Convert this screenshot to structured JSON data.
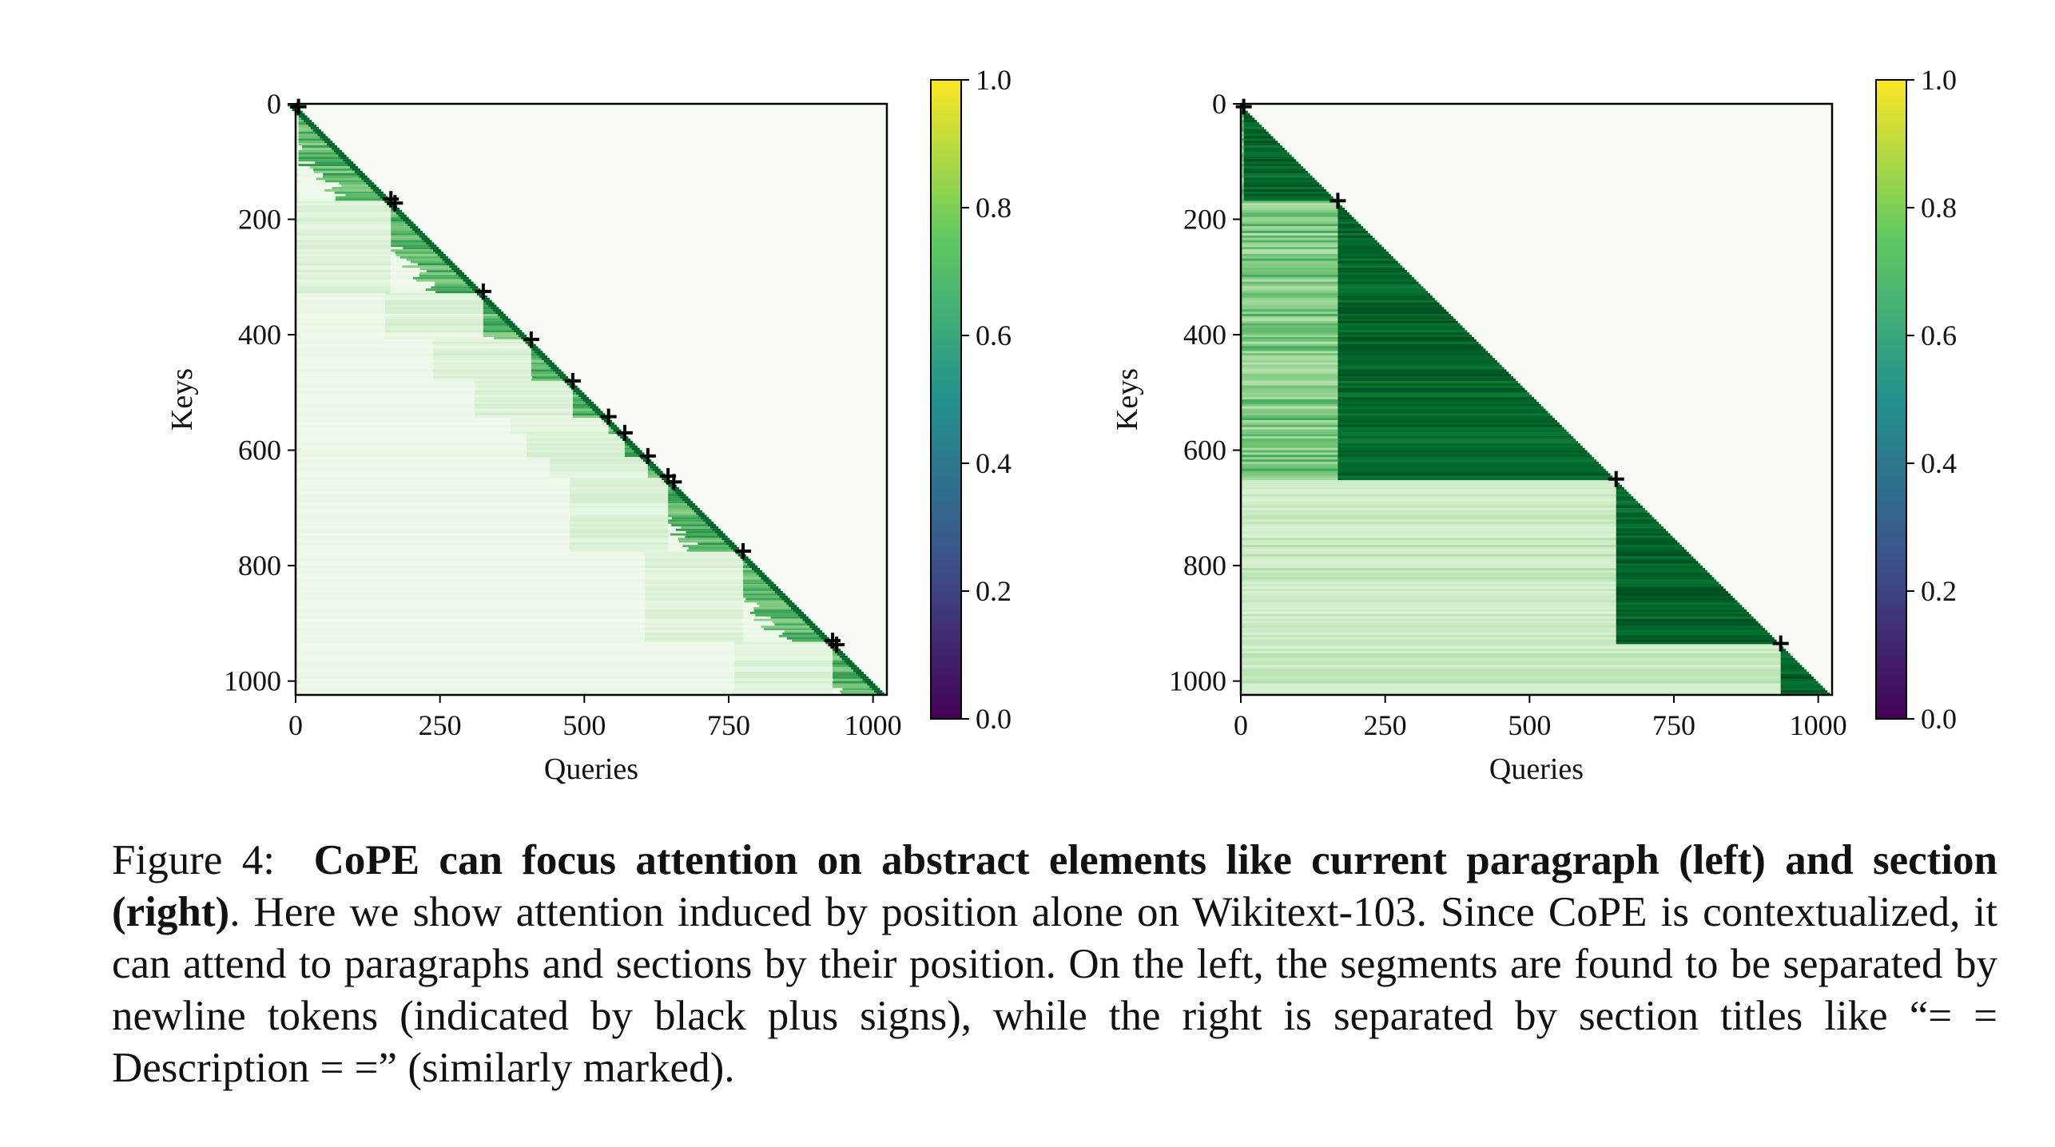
{
  "figure": {
    "label": "Figure 4:",
    "bold_text": "CoPE can focus attention on abstract elements like current paragraph (left) and section (right)",
    "body_text": ". Here we show attention induced by position alone on Wikitext-103. Since CoPE is contextualized, it can attend to paragraphs and sections by their position. On the left, the segments are found to be separated by newline tokens (indicated by black plus signs), while the right is separated by section titles like “= = Description = =” (similarly marked)."
  },
  "colors": {
    "cmap_heat": [
      "#f7fcf5",
      "#e5f5e0",
      "#c7e9c0",
      "#a1d99b",
      "#74c476",
      "#41ab5d",
      "#238b45",
      "#006d2c",
      "#00441b"
    ],
    "cmap_colorbar": [
      "#440154",
      "#3b528b",
      "#21918c",
      "#5ec962",
      "#fde725"
    ]
  },
  "chart_data": [
    {
      "type": "heatmap",
      "title": "",
      "xlabel": "Queries",
      "ylabel": "Keys",
      "xlim": [
        0,
        1024
      ],
      "ylim": [
        1024,
        0
      ],
      "x_ticks": [
        0,
        250,
        500,
        750,
        1000
      ],
      "y_ticks": [
        0,
        200,
        400,
        600,
        800,
        1000
      ],
      "x_tick_labels": [
        "0",
        "250",
        "500",
        "750",
        "1000"
      ],
      "y_tick_labels": [
        "0",
        "200",
        "400",
        "600",
        "800",
        "1000"
      ],
      "markers": [
        5,
        165,
        172,
        325,
        408,
        480,
        542,
        570,
        610,
        645,
        655,
        775,
        930,
        937
      ],
      "colorbar": {
        "range": [
          0.0,
          1.0
        ],
        "ticks": [
          "0.0",
          "0.2",
          "0.4",
          "0.6",
          "0.8",
          "1.0"
        ]
      },
      "pattern": "attention concentrated along diagonal within current paragraph segments"
    },
    {
      "type": "heatmap",
      "title": "",
      "xlabel": "Queries",
      "ylabel": "Keys",
      "xlim": [
        0,
        1024
      ],
      "ylim": [
        1024,
        0
      ],
      "x_ticks": [
        0,
        250,
        500,
        750,
        1000
      ],
      "y_ticks": [
        0,
        200,
        400,
        600,
        800,
        1000
      ],
      "x_tick_labels": [
        "0",
        "250",
        "500",
        "750",
        "1000"
      ],
      "y_tick_labels": [
        "0",
        "200",
        "400",
        "600",
        "800",
        "1000"
      ],
      "markers": [
        5,
        168,
        650,
        935
      ],
      "colorbar": {
        "range": [
          0.0,
          1.0
        ],
        "ticks": [
          "0.0",
          "0.2",
          "0.4",
          "0.6",
          "0.8",
          "1.0"
        ]
      },
      "pattern": "attention spread over whole current section, lower-triangular"
    }
  ]
}
